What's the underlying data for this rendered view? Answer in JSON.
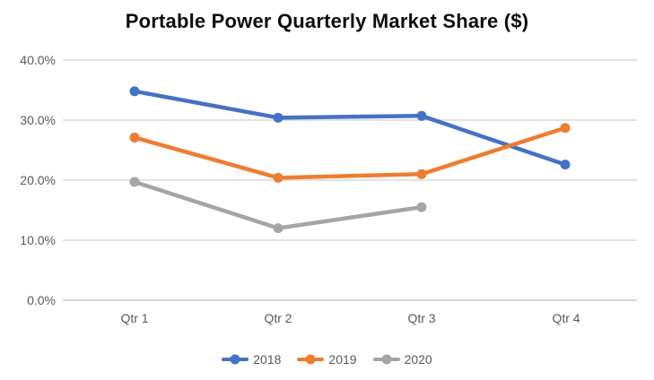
{
  "title": "Portable Power Quarterly Market Share ($)",
  "chart_data": {
    "type": "line",
    "title": "Portable Power Quarterly Market Share ($)",
    "categories": [
      "Qtr 1",
      "Qtr 2",
      "Qtr 3",
      "Qtr 4"
    ],
    "series": [
      {
        "name": "2018",
        "color": "#4472C4",
        "values": [
          34.8,
          30.4,
          30.7,
          22.6
        ]
      },
      {
        "name": "2019",
        "color": "#ED7D31",
        "values": [
          27.1,
          20.4,
          21.0,
          28.7
        ]
      },
      {
        "name": "2020",
        "color": "#A5A5A5",
        "values": [
          19.7,
          12.0,
          15.5,
          null
        ]
      }
    ],
    "ylim": [
      0,
      40
    ],
    "ytick_values": [
      40,
      30,
      20,
      10,
      0
    ],
    "ytick_labels": [
      "40.0%",
      "30.0%",
      "20.0%",
      "10.0%",
      "0.0%"
    ],
    "xlabel": "",
    "ylabel": "",
    "grid": true,
    "gridline_color": "#D9D9D9",
    "axis_line_color": "#C9C9C9",
    "legend_position": "bottom"
  }
}
